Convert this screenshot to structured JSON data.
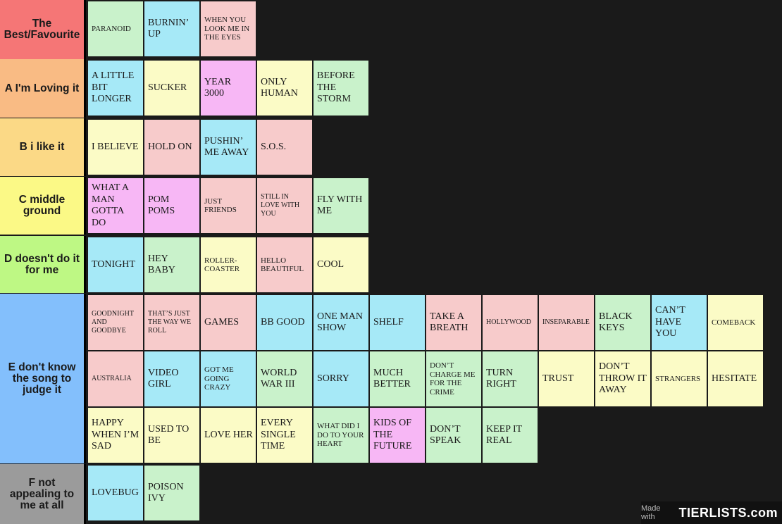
{
  "tiers": [
    {
      "label": "The Best/Favourite",
      "color": "#f57676",
      "items": [
        {
          "text": "Paranoid",
          "color": "green",
          "size": "s"
        },
        {
          "text": "Burnin’ Up",
          "color": "blue",
          "size": ""
        },
        {
          "text": "When You Look Me In The Eyes",
          "color": "pink",
          "size": "s"
        }
      ]
    },
    {
      "label": "A I'm Loving it",
      "color": "#f9bb84",
      "items": [
        {
          "text": "A Little Bit Longer",
          "color": "blue",
          "size": ""
        },
        {
          "text": "Sucker",
          "color": "yellow",
          "size": ""
        },
        {
          "text": "Year 3000",
          "color": "purple",
          "size": ""
        },
        {
          "text": "Only Human",
          "color": "yellow",
          "size": ""
        },
        {
          "text": "Before The Storm",
          "color": "green",
          "size": ""
        }
      ]
    },
    {
      "label": "B i like it",
      "color": "#fbd986",
      "items": [
        {
          "text": "I Believe",
          "color": "yellow",
          "size": ""
        },
        {
          "text": "Hold On",
          "color": "pink",
          "size": ""
        },
        {
          "text": "Pushin’ Me Away",
          "color": "blue",
          "size": ""
        },
        {
          "text": "S.O.S.",
          "color": "pink",
          "size": ""
        }
      ]
    },
    {
      "label": "C middle ground",
      "color": "#fbf986",
      "items": [
        {
          "text": "What A Man Gotta Do",
          "color": "purple",
          "size": ""
        },
        {
          "text": "Pom Poms",
          "color": "purple",
          "size": ""
        },
        {
          "text": "Just Friends",
          "color": "pink",
          "size": "s"
        },
        {
          "text": "Still In Love With You",
          "color": "pink",
          "size": "xs"
        },
        {
          "text": "Fly With Me",
          "color": "green",
          "size": ""
        }
      ]
    },
    {
      "label": "D doesn't do it for me",
      "color": "#bef884",
      "items": [
        {
          "text": "Tonight",
          "color": "blue",
          "size": ""
        },
        {
          "text": "Hey Baby",
          "color": "green",
          "size": ""
        },
        {
          "text": "Roller-coaster",
          "color": "yellow",
          "size": "s"
        },
        {
          "text": "Hello Beautiful",
          "color": "pink",
          "size": "s"
        },
        {
          "text": "Cool",
          "color": "yellow",
          "size": ""
        }
      ]
    },
    {
      "label": "E don't know the song to judge it",
      "color": "#83bffc",
      "items": [
        {
          "text": "Goodnight And Goodbye",
          "color": "pink",
          "size": "xs"
        },
        {
          "text": "That’s Just The Way We Roll",
          "color": "pink",
          "size": "xs"
        },
        {
          "text": "Games",
          "color": "pink",
          "size": ""
        },
        {
          "text": "BB Good",
          "color": "blue",
          "size": ""
        },
        {
          "text": "One Man Show",
          "color": "blue",
          "size": ""
        },
        {
          "text": "Shelf",
          "color": "blue",
          "size": ""
        },
        {
          "text": "Take A Breath",
          "color": "pink",
          "size": ""
        },
        {
          "text": "Hollywood",
          "color": "pink",
          "size": "xs"
        },
        {
          "text": "Inseparable",
          "color": "pink",
          "size": "xs"
        },
        {
          "text": "Black Keys",
          "color": "green",
          "size": ""
        },
        {
          "text": "Can’t Have You",
          "color": "blue",
          "size": ""
        },
        {
          "text": "Comeback",
          "color": "yellow",
          "size": "s"
        },
        {
          "text": "Australia",
          "color": "pink",
          "size": "xs"
        },
        {
          "text": "Video Girl",
          "color": "blue",
          "size": ""
        },
        {
          "text": "Got Me Going Crazy",
          "color": "blue",
          "size": "s"
        },
        {
          "text": "World War III",
          "color": "green",
          "size": ""
        },
        {
          "text": "Sorry",
          "color": "blue",
          "size": ""
        },
        {
          "text": "Much Better",
          "color": "green",
          "size": ""
        },
        {
          "text": "Don’t Charge Me For The Crime",
          "color": "green",
          "size": "s"
        },
        {
          "text": "Turn Right",
          "color": "green",
          "size": ""
        },
        {
          "text": "Trust",
          "color": "yellow",
          "size": ""
        },
        {
          "text": "Don’t Throw It Away",
          "color": "yellow",
          "size": ""
        },
        {
          "text": "Strangers",
          "color": "yellow",
          "size": "s"
        },
        {
          "text": "Hesitate",
          "color": "yellow",
          "size": ""
        },
        {
          "text": "Happy When I’m Sad",
          "color": "yellow",
          "size": ""
        },
        {
          "text": "Used To Be",
          "color": "yellow",
          "size": ""
        },
        {
          "text": "Love Her",
          "color": "yellow",
          "size": ""
        },
        {
          "text": "Every Single Time",
          "color": "yellow",
          "size": ""
        },
        {
          "text": "What Did I Do To Your Heart",
          "color": "green",
          "size": "s"
        },
        {
          "text": "Kids Of The Future",
          "color": "purple",
          "size": ""
        },
        {
          "text": "Don’t Speak",
          "color": "green",
          "size": ""
        },
        {
          "text": "Keep It Real",
          "color": "green",
          "size": ""
        }
      ]
    },
    {
      "label": "F not appealing to me at all",
      "color": "#9b9b9b",
      "items": [
        {
          "text": "Lovebug",
          "color": "blue",
          "size": ""
        },
        {
          "text": "Poison Ivy",
          "color": "green",
          "size": ""
        }
      ]
    }
  ],
  "watermark": {
    "made_with": "Made with",
    "brand": "TIERLISTS.com"
  }
}
